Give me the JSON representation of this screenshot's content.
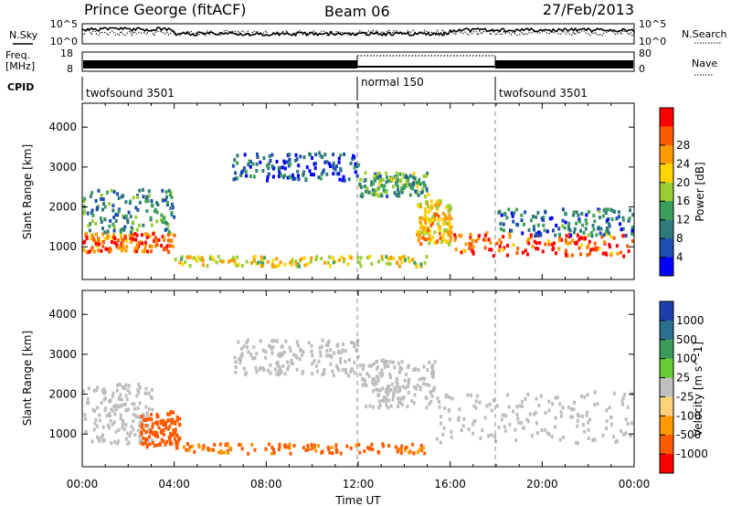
{
  "header": {
    "station": "Prince George (fitACF)",
    "beam": "Beam 06",
    "date": "27/Feb/2013"
  },
  "aux_panels": {
    "nsky_label": "N.Sky",
    "nsky_ticks": [
      "10^5",
      "10^0"
    ],
    "nsearch_label": "N.Search",
    "nsearch_ticks": [
      "10^5",
      "10^0"
    ],
    "freq_label_top": "Freq.",
    "freq_label_bottom": "[MHz]",
    "freq_ticks": [
      "18",
      "8"
    ],
    "nave_label": "Nave",
    "nave_ticks": [
      "80",
      "0"
    ],
    "cpid_label": "CPID",
    "cpid_segments": [
      {
        "label": "twofsound 3501",
        "start": "00:00",
        "end": "12:00"
      },
      {
        "label": "normal 150",
        "start": "12:00",
        "end": "18:00"
      },
      {
        "label": "twofsound 3501",
        "start": "18:00",
        "end": "00:00"
      }
    ]
  },
  "colors": {
    "power_scale": [
      "#0000ff",
      "#1c4fb0",
      "#2e7a7a",
      "#3aa05a",
      "#9acd32",
      "#ffd400",
      "#ff9a00",
      "#ff5a00",
      "#ff0000"
    ],
    "velocity_scale": [
      "#1c3fb0",
      "#2a6f8f",
      "#3a9a5a",
      "#66cc33",
      "#c0c0c0",
      "#ffd27a",
      "#ff9a00",
      "#ff5a00",
      "#ff0000"
    ],
    "ground_scatter": "#bdbdbd"
  },
  "chart_data": [
    {
      "type": "heatmap",
      "title": "Power",
      "ylabel": "Slant Range [km]",
      "ylim": [
        180,
        4600
      ],
      "yticks": [
        1000,
        2000,
        3000,
        4000
      ],
      "xlabel": "Time UT",
      "xlim": [
        "00:00",
        "24:00"
      ],
      "xticks": [
        "00:00",
        "04:00",
        "08:00",
        "12:00",
        "16:00",
        "20:00",
        "00:00"
      ],
      "grid": false,
      "colorbar": {
        "label": "Power [dB]",
        "ticks": [
          4,
          8,
          12,
          16,
          20,
          24,
          28
        ]
      },
      "bands": [
        {
          "t": [
            0,
            4
          ],
          "range_km": [
            900,
            1400
          ],
          "power_db": 26
        },
        {
          "t": [
            0,
            4
          ],
          "range_km": [
            1400,
            2500
          ],
          "power_db": 10
        },
        {
          "t": [
            4,
            15
          ],
          "range_km": [
            550,
            800
          ],
          "power_db": 18
        },
        {
          "t": [
            6.5,
            12
          ],
          "range_km": [
            2700,
            3400
          ],
          "power_db": 6
        },
        {
          "t": [
            12,
            15
          ],
          "range_km": [
            2300,
            2900
          ],
          "power_db": 12
        },
        {
          "t": [
            14.5,
            16
          ],
          "range_km": [
            1100,
            2200
          ],
          "power_db": 20
        },
        {
          "t": [
            16,
            24
          ],
          "range_km": [
            800,
            1400
          ],
          "power_db": 26
        },
        {
          "t": [
            18,
            24
          ],
          "range_km": [
            1300,
            2000
          ],
          "power_db": 8
        }
      ]
    },
    {
      "type": "heatmap",
      "title": "Velocity",
      "ylabel": "Slant Range [km]",
      "ylim": [
        180,
        4600
      ],
      "yticks": [
        1000,
        2000,
        3000,
        4000
      ],
      "xlabel": "Time UT",
      "xlim": [
        "00:00",
        "24:00"
      ],
      "xticks": [
        "00:00",
        "04:00",
        "08:00",
        "12:00",
        "16:00",
        "20:00",
        "00:00"
      ],
      "grid": false,
      "colorbar": {
        "label": "Velocity [m s^-1]",
        "ticks": [
          1000,
          500,
          100,
          25,
          -25,
          -100,
          -500,
          -1000
        ]
      },
      "bands": [
        {
          "t": [
            0,
            3
          ],
          "range_km": [
            800,
            2300
          ],
          "velocity": 0,
          "ground_scatter": true
        },
        {
          "t": [
            2.5,
            4.2
          ],
          "range_km": [
            700,
            1600
          ],
          "velocity": -300
        },
        {
          "t": [
            4,
            15
          ],
          "range_km": [
            550,
            800
          ],
          "velocity": -200
        },
        {
          "t": [
            6.5,
            12
          ],
          "range_km": [
            2500,
            3400
          ],
          "velocity": 0,
          "ground_scatter": true
        },
        {
          "t": [
            12,
            15.3
          ],
          "range_km": [
            1700,
            2900
          ],
          "velocity": 0,
          "ground_scatter": true
        },
        {
          "t": [
            15.3,
            24
          ],
          "range_km": [
            800,
            2100
          ],
          "velocity": 0,
          "ground_scatter": true
        }
      ]
    }
  ]
}
